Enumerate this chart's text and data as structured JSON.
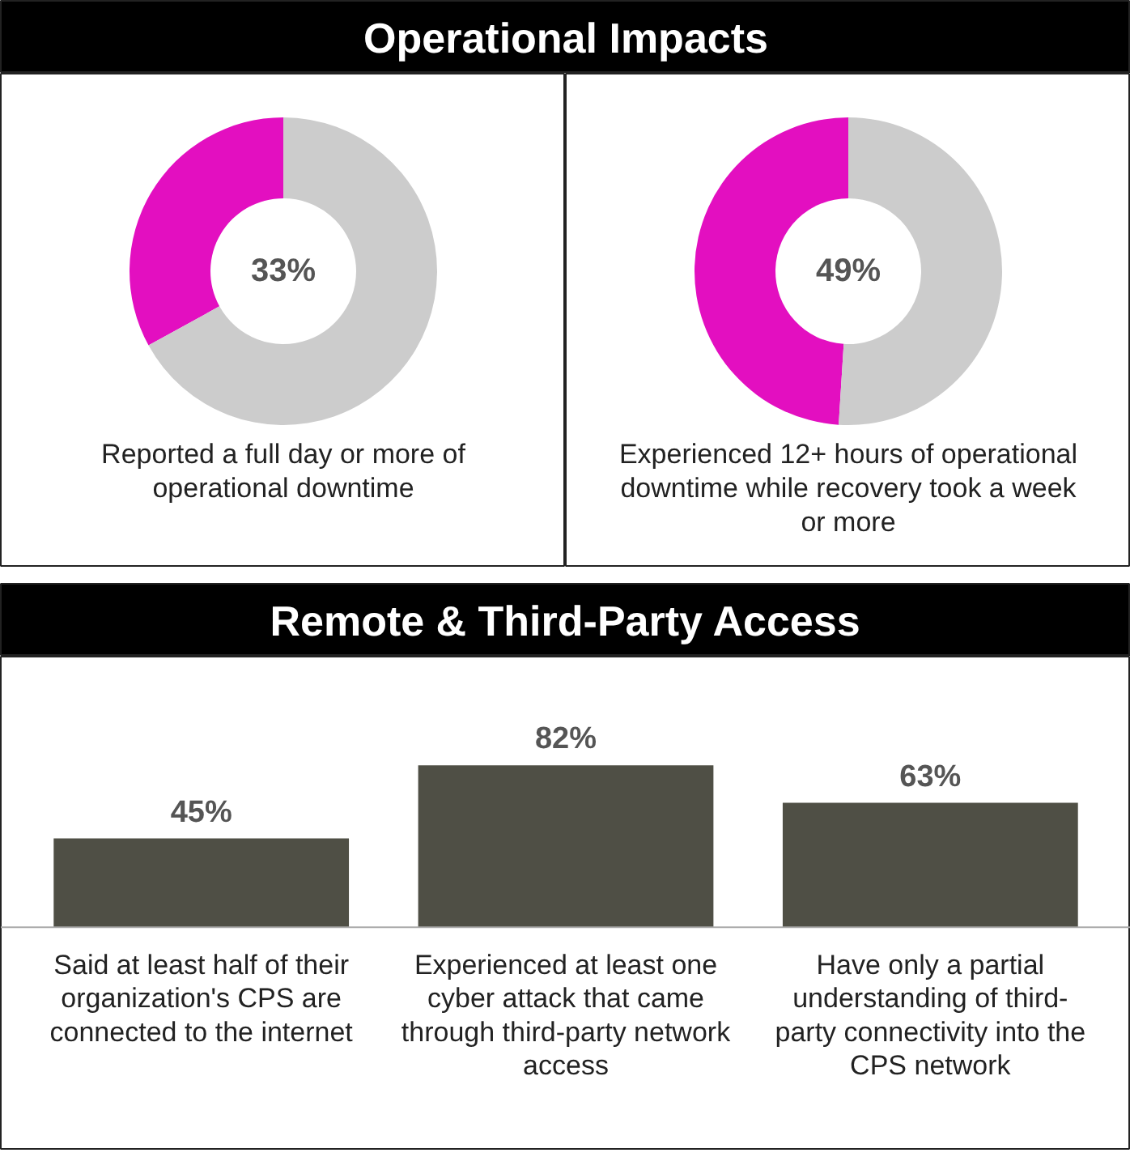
{
  "chart_data": [
    {
      "type": "donut",
      "title": "Operational Impacts",
      "categories": [
        null,
        null
      ],
      "values": [
        33,
        67
      ],
      "colors": [
        "#e30fc0",
        "#cccccc"
      ],
      "annotations": [
        "33%",
        "Reported a full day or more of operational downtime"
      ]
    },
    {
      "type": "donut",
      "categories": [
        null,
        null
      ],
      "values": [
        49,
        51
      ],
      "colors": [
        "#e30fc0",
        "#cccccc"
      ],
      "annotations": [
        "49%",
        "Experienced 12+ hours of operational downtime while recovery took a week or more"
      ]
    },
    {
      "type": "bar",
      "title": "Remote & Third-Party Access",
      "categories": [
        "Said at least half of their organization's CPS are connected to the internet",
        "Experienced at least one cyber attack that came through third-party network access",
        "Have only a partial understanding of third-party connectivity into the CPS network"
      ],
      "values": [
        45,
        82,
        63
      ],
      "color": "#4f4f45",
      "value_labels": [
        "45%",
        "82%",
        "63%"
      ]
    }
  ]
}
